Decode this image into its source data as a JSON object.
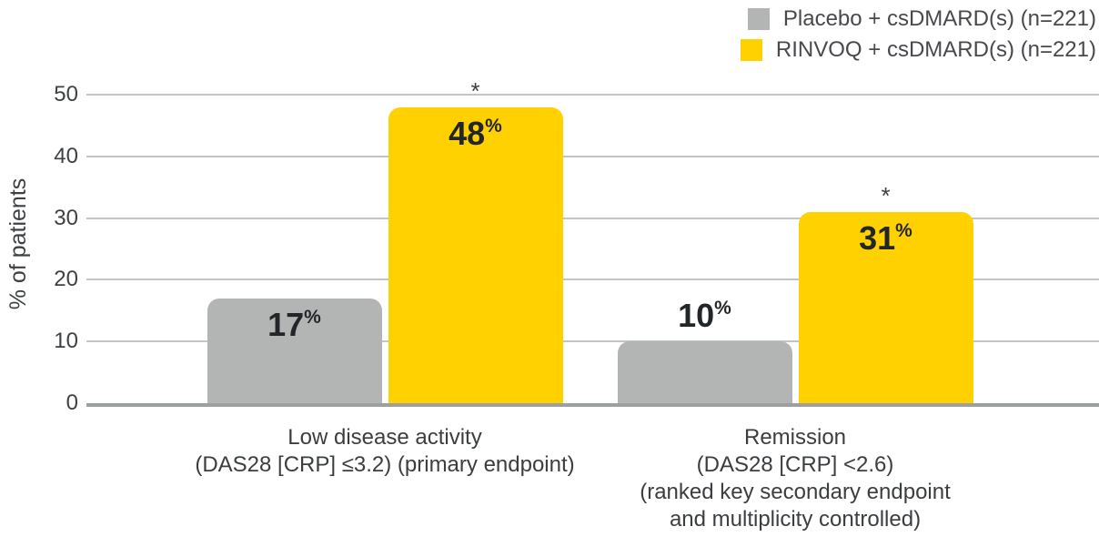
{
  "chart_data": {
    "type": "bar",
    "title": "",
    "ylabel": "% of patients",
    "value_suffix": "%",
    "ylim": [
      0,
      50
    ],
    "yticks": [
      0,
      10,
      20,
      30,
      40,
      50
    ],
    "grid": true,
    "legend_position": "top-right",
    "categories": [
      {
        "lines": [
          "Low disease activity",
          "(DAS28 [CRP] ≤3.2) (primary endpoint)"
        ]
      },
      {
        "lines": [
          "Remission",
          "(DAS28 [CRP] <2.6)",
          "(ranked key secondary endpoint",
          "and multiplicity controlled)"
        ]
      }
    ],
    "series": [
      {
        "name": "Placebo + csDMARD(s) (n=221)",
        "color": "#b3b4b4",
        "values": [
          17,
          10
        ],
        "annotations": [
          "",
          ""
        ]
      },
      {
        "name": "RINVOQ + csDMARD(s) (n=221)",
        "color": "#ffd100",
        "values": [
          48,
          31
        ],
        "annotations": [
          "*",
          "*"
        ]
      }
    ]
  },
  "colors": {
    "placebo_bar": "#b3b4b4",
    "rinvoq_bar": "#ffd100",
    "bar_value_text": "#232629",
    "axis_text": "#3e4143",
    "gridline": "#c3c5c5",
    "axis_line": "#9da0a0"
  }
}
